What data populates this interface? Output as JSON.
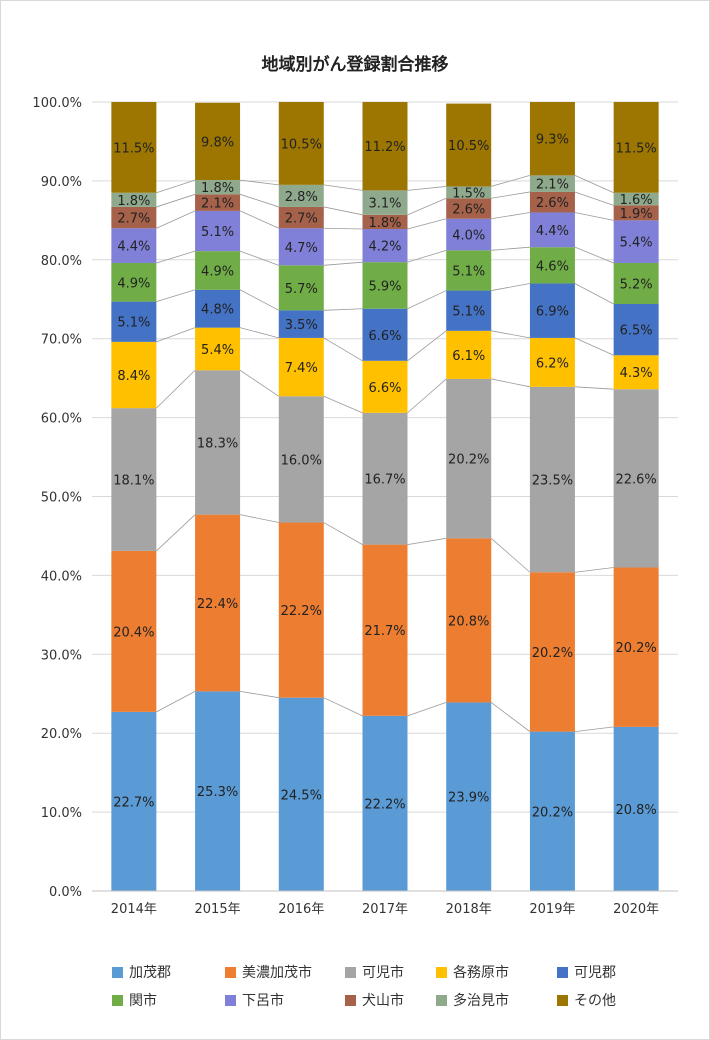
{
  "chart_data": {
    "type": "bar",
    "stacked": true,
    "title": "地域別がん登録割合推移",
    "xlabel": "",
    "ylabel": "",
    "ylim": [
      0,
      100
    ],
    "y_ticks": [
      "0.0%",
      "10.0%",
      "20.0%",
      "30.0%",
      "40.0%",
      "50.0%",
      "60.0%",
      "70.0%",
      "80.0%",
      "90.0%",
      "100.0%"
    ],
    "grid": true,
    "legend_position": "bottom",
    "categories": [
      "2014年",
      "2015年",
      "2016年",
      "2017年",
      "2018年",
      "2019年",
      "2020年"
    ],
    "series": [
      {
        "name": "加茂郡",
        "color": "#5b9bd5",
        "values": [
          22.7,
          25.3,
          24.5,
          22.2,
          23.9,
          20.2,
          20.8
        ],
        "labels": [
          "22.7%",
          "25.3%",
          "24.5%",
          "22.2%",
          "23.9%",
          "20.2%",
          "20.8%"
        ]
      },
      {
        "name": "美濃加茂市",
        "color": "#ed7d31",
        "values": [
          20.4,
          22.4,
          22.2,
          21.7,
          20.8,
          20.2,
          20.2
        ],
        "labels": [
          "20.4%",
          "22.4%",
          "22.2%",
          "21.7%",
          "20.8%",
          "20.2%",
          "20.2%"
        ]
      },
      {
        "name": "可児市",
        "color": "#a5a5a5",
        "values": [
          18.1,
          18.3,
          16.0,
          16.7,
          20.2,
          23.5,
          22.6
        ],
        "labels": [
          "18.1%",
          "18.3%",
          "16.0%",
          "16.7%",
          "20.2%",
          "23.5%",
          "22.6%"
        ]
      },
      {
        "name": "各務原市",
        "color": "#ffc000",
        "values": [
          8.4,
          5.4,
          7.4,
          6.6,
          6.1,
          6.2,
          4.3
        ],
        "labels": [
          "8.4%",
          "5.4%",
          "7.4%",
          "6.6%",
          "6.1%",
          "6.2%",
          "4.3%"
        ]
      },
      {
        "name": "可児郡",
        "color": "#4472c4",
        "values": [
          5.1,
          4.8,
          3.5,
          6.6,
          5.1,
          6.9,
          6.5
        ],
        "labels": [
          "5.1%",
          "4.8%",
          "3.5%",
          "6.6%",
          "5.1%",
          "6.9%",
          "6.5%"
        ]
      },
      {
        "name": "関市",
        "color": "#70ad47",
        "values": [
          4.9,
          4.9,
          5.7,
          5.9,
          5.1,
          4.6,
          5.2
        ],
        "labels": [
          "4.9%",
          "4.9%",
          "5.7%",
          "5.9%",
          "5.1%",
          "4.6%",
          "5.2%"
        ]
      },
      {
        "name": "下呂市",
        "color": "#8080d8",
        "values": [
          4.4,
          5.1,
          4.7,
          4.2,
          4.0,
          4.4,
          5.4
        ],
        "labels": [
          "4.4%",
          "5.1%",
          "4.7%",
          "4.2%",
          "4.0%",
          "4.4%",
          "5.4%"
        ]
      },
      {
        "name": "犬山市",
        "color": "#a5614a",
        "values": [
          2.7,
          2.1,
          2.7,
          1.8,
          2.6,
          2.6,
          1.9
        ],
        "labels": [
          "2.7%",
          "2.1%",
          "2.7%",
          "1.8%",
          "2.6%",
          "2.6%",
          "1.9%"
        ]
      },
      {
        "name": "多治見市",
        "color": "#8fa98c",
        "values": [
          1.8,
          1.8,
          2.8,
          3.1,
          1.5,
          2.1,
          1.6
        ],
        "labels": [
          "1.8%",
          "1.8%",
          "2.8%",
          "3.1%",
          "1.5%",
          "2.1%",
          "1.6%"
        ]
      },
      {
        "name": "その他",
        "color": "#9c7600",
        "values": [
          11.5,
          9.8,
          10.5,
          11.2,
          10.5,
          9.3,
          11.5
        ],
        "labels": [
          "11.5%",
          "9.8%",
          "10.5%",
          "11.2%",
          "10.5%",
          "9.3%",
          "11.5%"
        ]
      }
    ]
  }
}
